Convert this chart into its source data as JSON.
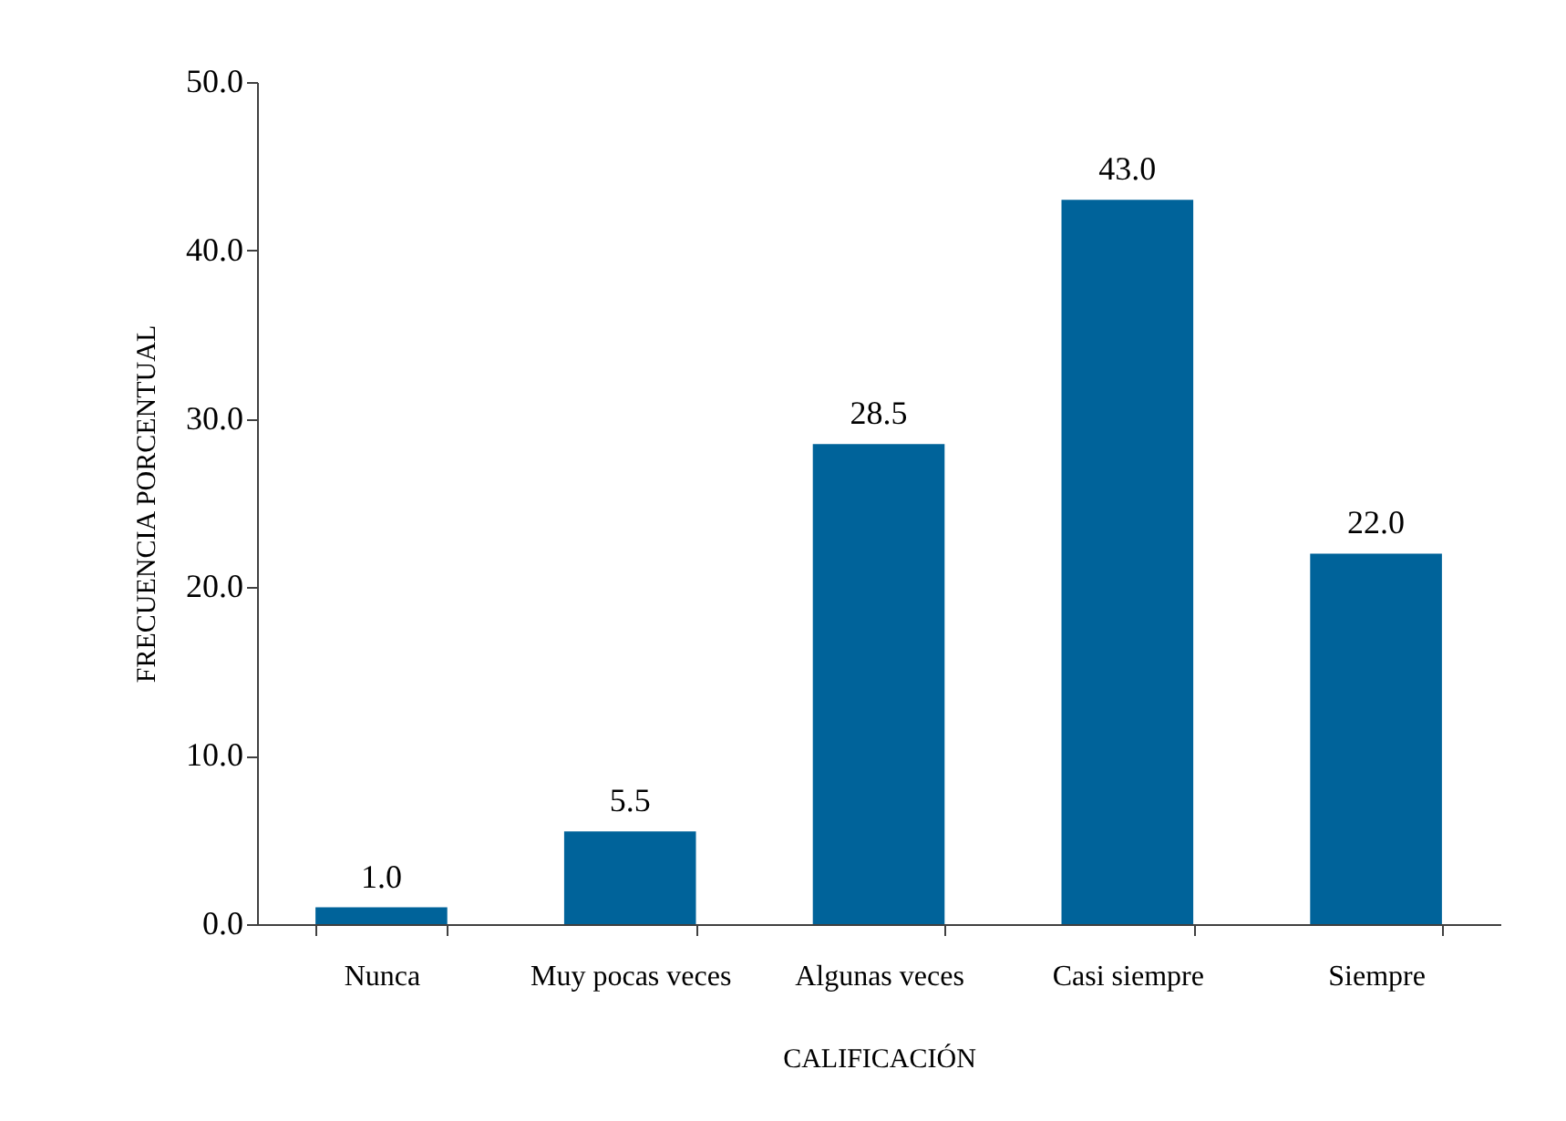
{
  "chart_data": {
    "type": "bar",
    "xlabel": "CALIFICACIÓN",
    "ylabel": "FRECUENCIA PORCENTUAL",
    "categories": [
      "Nunca",
      "Muy pocas veces",
      "Algunas veces",
      "Casi siempre",
      "Siempre"
    ],
    "values": [
      1.0,
      5.5,
      28.5,
      43.0,
      22.0
    ],
    "color": "#00639a",
    "value_labels": [
      "1.0",
      "5.5",
      "28.5",
      "43.0",
      "22.0"
    ],
    "ylim": [
      0,
      50
    ],
    "yticks": [
      {
        "value": 0,
        "label": "0.0"
      },
      {
        "value": 10,
        "label": "10.0"
      },
      {
        "value": 20,
        "label": "20.0"
      },
      {
        "value": 30,
        "label": "30.0"
      },
      {
        "value": 40,
        "label": "40.0"
      },
      {
        "value": 50,
        "label": "50.0"
      }
    ]
  }
}
